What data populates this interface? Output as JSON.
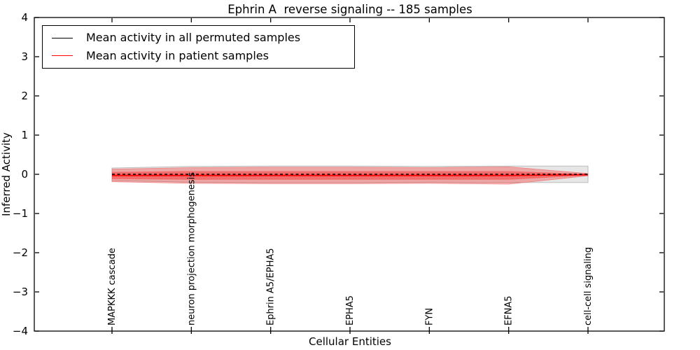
{
  "chart_data": {
    "type": "line",
    "title": "Ephrin A  reverse signaling -- 185 samples",
    "xlabel": "Cellular Entities",
    "ylabel": "Inferred Activity",
    "ylim": [
      -4,
      4
    ],
    "yticks": [
      -4,
      -3,
      -2,
      -1,
      0,
      1,
      2,
      3,
      4
    ],
    "grid": false,
    "legend_position": "upper left",
    "categories": [
      "MAPKKK cascade",
      "neuron projection morphogenesis",
      "Ephrin A5/EPHA5",
      "EPHA5",
      "FYN",
      "EFNA5",
      "cell-cell signaling"
    ],
    "series": [
      {
        "name": "Mean activity in all permuted samples",
        "color": "#000000",
        "line_style": "dashed",
        "values": [
          0,
          0,
          0,
          0,
          0,
          0,
          0
        ],
        "band": {
          "halfwidths": [
            0.16,
            0.2,
            0.21,
            0.21,
            0.2,
            0.21,
            0.21
          ],
          "fill": "#e6e6e6",
          "edge": "#bdbdbd"
        }
      },
      {
        "name": "Mean activity in patient samples",
        "color": "#ff0000",
        "line_style": "solid",
        "values": [
          -0.03,
          -0.03,
          -0.03,
          -0.03,
          -0.03,
          -0.03,
          -0.01
        ],
        "band_outer": {
          "halfwidths": [
            0.16,
            0.2,
            0.21,
            0.21,
            0.2,
            0.22,
            0.03
          ],
          "opacity": 0.28,
          "edge": "#f08080"
        },
        "band_inner": {
          "halfwidths": [
            0.09,
            0.11,
            0.11,
            0.11,
            0.11,
            0.11,
            0.02
          ],
          "opacity": 0.35
        }
      }
    ]
  }
}
